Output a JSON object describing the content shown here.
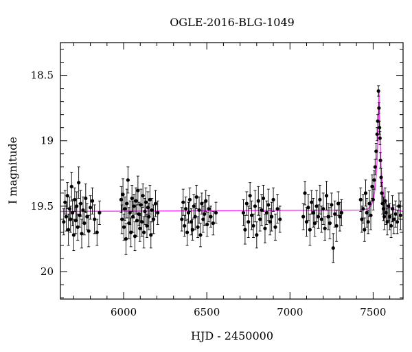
{
  "chart_data": {
    "type": "scatter",
    "title": "OGLE-2016-BLG-1049",
    "xlabel": "HJD - 2450000",
    "ylabel": "I magnitude",
    "xlim": [
      5620,
      7680
    ],
    "ylim": [
      18.25,
      20.21
    ],
    "y_inverted": true,
    "grid": false,
    "legend": "none",
    "x_ticks": [
      6000,
      6500,
      7000,
      7500
    ],
    "x_tick_labels": [
      "6000",
      "6500",
      "7000",
      "7500"
    ],
    "y_ticks": [
      18.5,
      19,
      19.5,
      20
    ],
    "y_tick_labels": [
      "18.5",
      "19",
      "19.5",
      "20"
    ],
    "colors": {
      "points": "#000000",
      "model": "#ff33ff"
    },
    "model": {
      "name": "",
      "baseline": 19.54,
      "peak": 18.62,
      "t0": 7535,
      "tE": 14,
      "x": [
        5620,
        7420,
        7470,
        7490,
        7505,
        7515,
        7522,
        7528,
        7532,
        7535,
        7538,
        7542,
        7548,
        7555,
        7565,
        7580,
        7600,
        7640,
        7680
      ],
      "y": [
        19.54,
        19.53,
        19.52,
        19.49,
        19.43,
        19.33,
        19.2,
        19.0,
        18.8,
        18.62,
        18.8,
        19.0,
        19.2,
        19.33,
        19.43,
        19.49,
        19.51,
        19.53,
        19.54
      ]
    },
    "series": [
      {
        "x": [
          5640,
          5648,
          5655,
          5662,
          5668,
          5675,
          5681,
          5687,
          5693,
          5700,
          5706,
          5712,
          5718,
          5724,
          5730,
          5736,
          5742,
          5748,
          5756,
          5764,
          5772,
          5780,
          5790,
          5800,
          5812,
          5825,
          5840,
          5855,
          5985,
          5990,
          5996,
          6002,
          6008,
          6014,
          6020,
          6026,
          6032,
          6038,
          6044,
          6050,
          6056,
          6062,
          6068,
          6074,
          6080,
          6086,
          6092,
          6098,
          6104,
          6110,
          6116,
          6122,
          6128,
          6134,
          6140,
          6146,
          6152,
          6158,
          6164,
          6170,
          6180,
          6192,
          6205,
          6350,
          6358,
          6366,
          6374,
          6382,
          6390,
          6398,
          6406,
          6414,
          6422,
          6430,
          6438,
          6446,
          6454,
          6462,
          6470,
          6478,
          6486,
          6494,
          6502,
          6512,
          6524,
          6538,
          6555,
          6720,
          6730,
          6740,
          6750,
          6760,
          6770,
          6780,
          6790,
          6800,
          6810,
          6820,
          6830,
          6840,
          6850,
          6860,
          6870,
          6880,
          6890,
          6900,
          6912,
          6925,
          6940,
          7080,
          7090,
          7100,
          7110,
          7120,
          7130,
          7140,
          7150,
          7160,
          7170,
          7180,
          7190,
          7200,
          7210,
          7220,
          7230,
          7240,
          7250,
          7260,
          7270,
          7280,
          7290,
          7300,
          7310,
          7425,
          7432,
          7440,
          7448,
          7455,
          7462,
          7470,
          7478,
          7486,
          7494,
          7500,
          7506,
          7512,
          7518,
          7524,
          7528,
          7532,
          7535,
          7538,
          7541,
          7544,
          7548,
          7552,
          7557,
          7562,
          7567,
          7572,
          7578,
          7585,
          7592,
          7600,
          7608,
          7616,
          7625,
          7635,
          7645,
          7655,
          7665
        ],
        "y": [
          19.62,
          19.47,
          19.58,
          19.42,
          19.68,
          19.52,
          19.6,
          19.35,
          19.55,
          19.72,
          19.45,
          19.61,
          19.5,
          19.66,
          19.32,
          19.57,
          19.48,
          19.71,
          19.53,
          19.63,
          19.44,
          19.58,
          19.69,
          19.51,
          19.46,
          19.6,
          19.7,
          19.55,
          19.45,
          19.6,
          19.41,
          19.66,
          19.52,
          19.75,
          19.48,
          19.3,
          19.63,
          19.55,
          19.7,
          19.44,
          19.58,
          19.5,
          19.73,
          19.46,
          19.61,
          19.38,
          19.56,
          19.67,
          19.49,
          19.62,
          19.42,
          19.7,
          19.54,
          19.47,
          19.65,
          19.51,
          19.58,
          19.45,
          19.72,
          19.53,
          19.6,
          19.48,
          19.55,
          19.6,
          19.47,
          19.65,
          19.52,
          19.7,
          19.55,
          19.45,
          19.62,
          19.68,
          19.5,
          19.58,
          19.43,
          19.66,
          19.53,
          19.72,
          19.48,
          19.6,
          19.56,
          19.46,
          19.64,
          19.52,
          19.58,
          19.63,
          19.55,
          19.55,
          19.68,
          19.48,
          19.62,
          19.42,
          19.57,
          19.65,
          19.5,
          19.72,
          19.46,
          19.6,
          19.53,
          19.44,
          19.67,
          19.55,
          19.49,
          19.62,
          19.58,
          19.45,
          19.66,
          19.52,
          19.6,
          19.58,
          19.4,
          19.62,
          19.51,
          19.68,
          19.47,
          19.55,
          19.63,
          19.5,
          19.58,
          19.45,
          19.6,
          19.52,
          19.67,
          19.42,
          19.58,
          19.63,
          19.49,
          19.82,
          19.56,
          19.65,
          19.48,
          19.58,
          19.55,
          19.45,
          19.6,
          19.52,
          19.68,
          19.4,
          19.55,
          19.62,
          19.48,
          19.57,
          19.35,
          19.45,
          19.3,
          19.2,
          19.08,
          18.95,
          18.85,
          18.62,
          18.75,
          18.9,
          18.98,
          19.15,
          19.28,
          19.4,
          19.48,
          19.52,
          19.58,
          19.46,
          19.55,
          19.62,
          19.5,
          19.58,
          19.65,
          19.52,
          19.6,
          19.56,
          19.62,
          19.5,
          19.57
        ],
        "err": [
          0.1,
          0.09,
          0.11,
          0.1,
          0.12,
          0.09,
          0.1,
          0.11,
          0.1,
          0.12,
          0.09,
          0.1,
          0.11,
          0.1,
          0.12,
          0.09,
          0.1,
          0.11,
          0.1,
          0.09,
          0.11,
          0.1,
          0.12,
          0.09,
          0.1,
          0.11,
          0.1,
          0.09,
          0.1,
          0.11,
          0.12,
          0.1,
          0.09,
          0.12,
          0.11,
          0.1,
          0.12,
          0.09,
          0.11,
          0.1,
          0.12,
          0.09,
          0.11,
          0.1,
          0.12,
          0.11,
          0.09,
          0.1,
          0.12,
          0.11,
          0.09,
          0.12,
          0.1,
          0.11,
          0.09,
          0.12,
          0.1,
          0.11,
          0.1,
          0.09,
          0.11,
          0.1,
          0.09,
          0.09,
          0.1,
          0.08,
          0.09,
          0.1,
          0.08,
          0.09,
          0.1,
          0.08,
          0.09,
          0.1,
          0.09,
          0.08,
          0.1,
          0.09,
          0.08,
          0.1,
          0.09,
          0.08,
          0.09,
          0.1,
          0.08,
          0.09,
          0.08,
          0.1,
          0.11,
          0.09,
          0.12,
          0.1,
          0.11,
          0.09,
          0.12,
          0.1,
          0.11,
          0.09,
          0.12,
          0.1,
          0.11,
          0.09,
          0.12,
          0.1,
          0.11,
          0.09,
          0.1,
          0.11,
          0.1,
          0.1,
          0.09,
          0.11,
          0.1,
          0.12,
          0.09,
          0.11,
          0.1,
          0.12,
          0.09,
          0.11,
          0.1,
          0.12,
          0.09,
          0.11,
          0.1,
          0.12,
          0.09,
          0.11,
          0.1,
          0.12,
          0.09,
          0.11,
          0.1,
          0.09,
          0.1,
          0.11,
          0.09,
          0.1,
          0.11,
          0.09,
          0.1,
          0.11,
          0.09,
          0.08,
          0.07,
          0.06,
          0.06,
          0.05,
          0.05,
          0.04,
          0.04,
          0.05,
          0.05,
          0.06,
          0.07,
          0.08,
          0.08,
          0.09,
          0.1,
          0.1,
          0.09,
          0.1,
          0.11,
          0.1,
          0.09,
          0.1,
          0.11,
          0.1,
          0.09,
          0.1,
          0.11
        ]
      }
    ]
  }
}
